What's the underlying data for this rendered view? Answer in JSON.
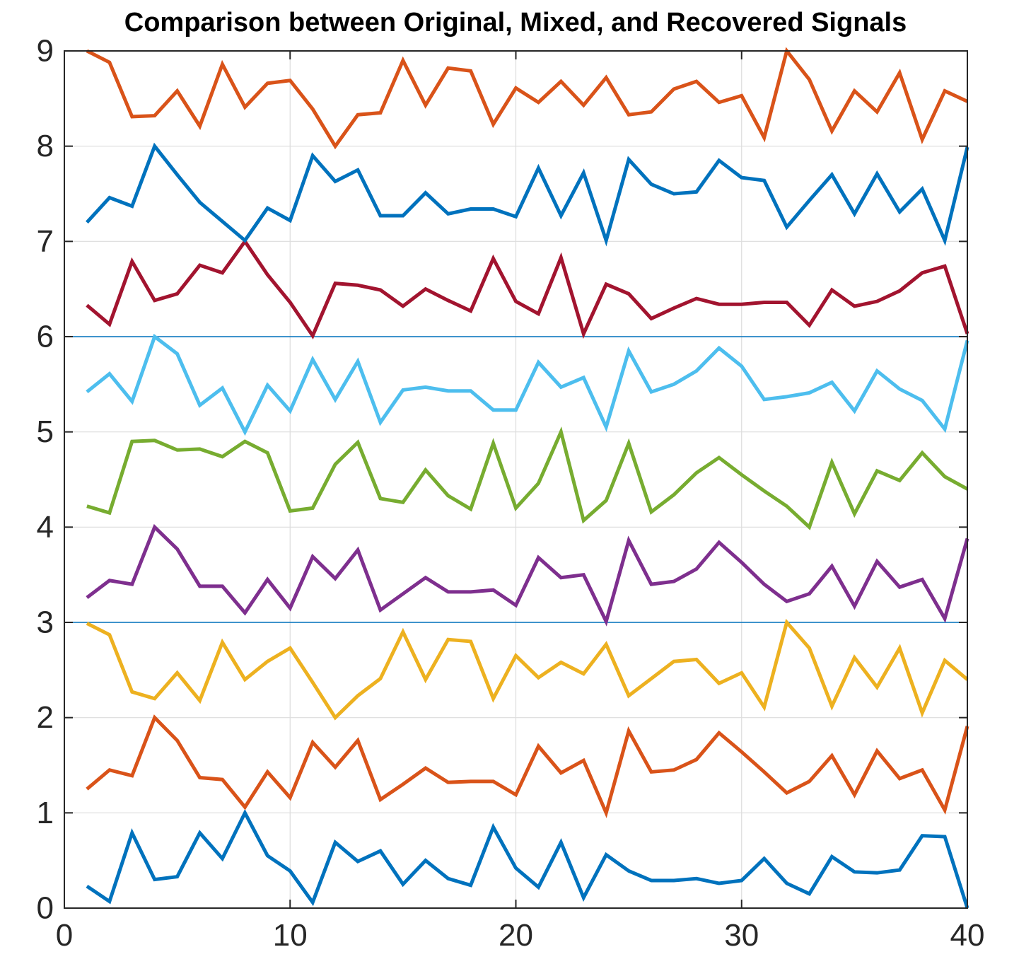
{
  "chart_data": {
    "type": "line",
    "title": "Comparison between Original, Mixed, and Recovered Signals",
    "xlabel": "",
    "ylabel": "",
    "xlim": [
      0,
      40
    ],
    "ylim": [
      0,
      9
    ],
    "xticks": [
      0,
      10,
      20,
      30,
      40
    ],
    "yticks": [
      0,
      1,
      2,
      3,
      4,
      5,
      6,
      7,
      8,
      9
    ],
    "grid": true,
    "separators": [
      3,
      6
    ],
    "x": [
      1,
      2,
      3,
      4,
      5,
      6,
      7,
      8,
      9,
      10,
      11,
      12,
      13,
      14,
      15,
      16,
      17,
      18,
      19,
      20,
      21,
      22,
      23,
      24,
      25,
      26,
      27,
      28,
      29,
      30,
      31,
      32,
      33,
      34,
      35,
      36,
      37,
      38,
      39,
      40
    ],
    "series": [
      {
        "color": "#0072BD",
        "values": [
          0.23,
          0.07,
          0.79,
          0.3,
          0.33,
          0.79,
          0.52,
          1.0,
          0.55,
          0.39,
          0.06,
          0.69,
          0.49,
          0.6,
          0.25,
          0.5,
          0.31,
          0.24,
          0.85,
          0.42,
          0.22,
          0.69,
          0.11,
          0.56,
          0.39,
          0.29,
          0.29,
          0.31,
          0.26,
          0.29,
          0.52,
          0.26,
          0.15,
          0.54,
          0.38,
          0.37,
          0.4,
          0.76,
          0.75,
          0.0
        ]
      },
      {
        "color": "#D95319",
        "values": [
          1.25,
          1.45,
          1.39,
          2.0,
          1.76,
          1.37,
          1.35,
          1.06,
          1.43,
          1.16,
          1.74,
          1.48,
          1.76,
          1.14,
          1.3,
          1.47,
          1.32,
          1.33,
          1.33,
          1.19,
          1.7,
          1.42,
          1.55,
          1.0,
          1.86,
          1.43,
          1.45,
          1.56,
          1.84,
          1.64,
          1.43,
          1.21,
          1.33,
          1.6,
          1.19,
          1.65,
          1.36,
          1.45,
          1.03,
          1.91
        ]
      },
      {
        "color": "#EDB120",
        "values": [
          2.99,
          2.87,
          2.27,
          2.2,
          2.47,
          2.18,
          2.79,
          2.4,
          2.59,
          2.73,
          2.37,
          2.0,
          2.23,
          2.41,
          2.9,
          2.4,
          2.82,
          2.8,
          2.2,
          2.65,
          2.42,
          2.58,
          2.46,
          2.77,
          2.23,
          2.41,
          2.59,
          2.61,
          2.36,
          2.47,
          2.11,
          3.0,
          2.73,
          2.12,
          2.63,
          2.32,
          2.73,
          2.05,
          2.6,
          2.4
        ]
      },
      {
        "color": "#7E2F8E",
        "values": [
          3.26,
          3.44,
          3.4,
          4.0,
          3.77,
          3.38,
          3.38,
          3.1,
          3.45,
          3.15,
          3.69,
          3.46,
          3.76,
          3.13,
          3.3,
          3.47,
          3.32,
          3.32,
          3.34,
          3.18,
          3.68,
          3.47,
          3.5,
          3.01,
          3.86,
          3.4,
          3.43,
          3.56,
          3.84,
          3.63,
          3.4,
          3.22,
          3.3,
          3.59,
          3.17,
          3.64,
          3.37,
          3.45,
          3.04,
          3.88
        ]
      },
      {
        "color": "#77AC30",
        "values": [
          4.22,
          4.15,
          4.9,
          4.91,
          4.81,
          4.82,
          4.74,
          4.9,
          4.78,
          4.17,
          4.2,
          4.66,
          4.89,
          4.3,
          4.26,
          4.6,
          4.33,
          4.19,
          4.88,
          4.2,
          4.46,
          5.0,
          4.07,
          4.28,
          4.88,
          4.16,
          4.34,
          4.57,
          4.73,
          4.55,
          4.38,
          4.22,
          4.0,
          4.68,
          4.14,
          4.59,
          4.49,
          4.78,
          4.53,
          4.4
        ]
      },
      {
        "color": "#4DBEEE",
        "values": [
          5.42,
          5.61,
          5.32,
          6.0,
          5.82,
          5.28,
          5.46,
          5.0,
          5.49,
          5.22,
          5.76,
          5.34,
          5.74,
          5.1,
          5.44,
          5.47,
          5.43,
          5.43,
          5.23,
          5.23,
          5.73,
          5.47,
          5.57,
          5.05,
          5.85,
          5.42,
          5.5,
          5.64,
          5.88,
          5.69,
          5.34,
          5.37,
          5.41,
          5.52,
          5.22,
          5.64,
          5.45,
          5.33,
          5.03,
          5.96
        ]
      },
      {
        "color": "#A2142F",
        "values": [
          6.33,
          6.13,
          6.79,
          6.38,
          6.45,
          6.75,
          6.67,
          7.0,
          6.65,
          6.36,
          6.01,
          6.56,
          6.54,
          6.49,
          6.32,
          6.5,
          6.38,
          6.27,
          6.82,
          6.37,
          6.24,
          6.83,
          6.03,
          6.55,
          6.45,
          6.19,
          6.3,
          6.4,
          6.34,
          6.34,
          6.36,
          6.36,
          6.12,
          6.49,
          6.32,
          6.37,
          6.48,
          6.67,
          6.74,
          6.03
        ]
      },
      {
        "color": "#0072BD",
        "values": [
          7.2,
          7.46,
          7.37,
          8.0,
          7.7,
          7.41,
          7.21,
          7.01,
          7.35,
          7.22,
          7.9,
          7.63,
          7.75,
          7.27,
          7.27,
          7.51,
          7.29,
          7.34,
          7.34,
          7.26,
          7.77,
          7.27,
          7.72,
          7.01,
          7.86,
          7.6,
          7.5,
          7.52,
          7.85,
          7.67,
          7.64,
          7.15,
          7.43,
          7.7,
          7.29,
          7.71,
          7.31,
          7.55,
          7.01,
          7.99
        ]
      },
      {
        "color": "#D95319",
        "values": [
          9.0,
          8.88,
          8.31,
          8.32,
          8.58,
          8.21,
          8.86,
          8.41,
          8.66,
          8.69,
          8.39,
          8.0,
          8.33,
          8.35,
          8.9,
          8.43,
          8.82,
          8.79,
          8.23,
          8.61,
          8.46,
          8.68,
          8.43,
          8.72,
          8.33,
          8.36,
          8.6,
          8.68,
          8.46,
          8.53,
          8.09,
          9.0,
          8.7,
          8.16,
          8.58,
          8.36,
          8.77,
          8.07,
          8.58,
          8.47
        ]
      }
    ]
  }
}
